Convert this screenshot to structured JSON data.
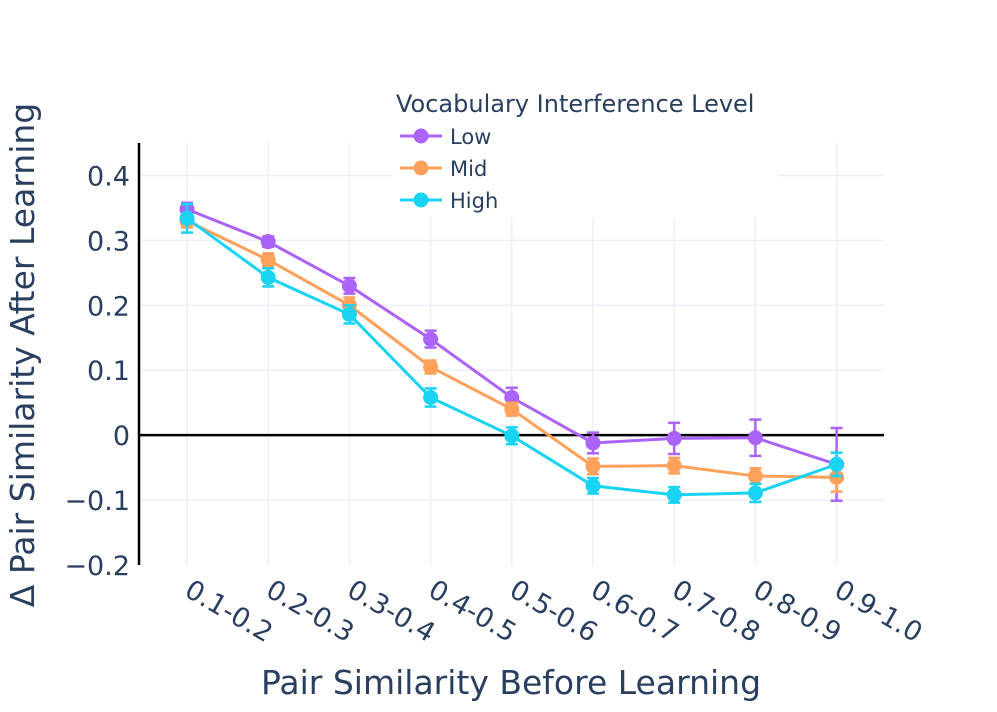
{
  "chart_data": {
    "type": "line",
    "title": "",
    "xlabel": "Pair Similarity Before Learning",
    "ylabel": "Δ Pair Similarity After Learning",
    "categories": [
      "0.1-0.2",
      "0.2-0.3",
      "0.3-0.4",
      "0.4-0.5",
      "0.5-0.6",
      "0.6-0.7",
      "0.7-0.8",
      "0.8-0.9",
      "0.9-1.0"
    ],
    "ylim": [
      -0.2,
      0.45
    ],
    "yticks": [
      -0.2,
      -0.1,
      0,
      0.1,
      0.2,
      0.3,
      0.4
    ],
    "ytick_labels": [
      "−0.2",
      "−0.1",
      "0",
      "0.1",
      "0.2",
      "0.3",
      "0.4"
    ],
    "grid": true,
    "legend": {
      "title": "Vocabulary Interference Level",
      "position": "top"
    },
    "series": [
      {
        "name": "Low",
        "color": "#ab63fa",
        "values": [
          0.348,
          0.298,
          0.23,
          0.148,
          0.058,
          -0.012,
          -0.005,
          -0.004,
          -0.045
        ],
        "errors": [
          0.01,
          0.008,
          0.012,
          0.013,
          0.015,
          0.016,
          0.024,
          0.028,
          0.056
        ]
      },
      {
        "name": "Mid",
        "color": "#ffa15a",
        "values": [
          0.33,
          0.27,
          0.2,
          0.105,
          0.04,
          -0.048,
          -0.047,
          -0.063,
          -0.065
        ],
        "errors": [
          0.01,
          0.01,
          0.012,
          0.01,
          0.01,
          0.012,
          0.012,
          0.012,
          0.022
        ]
      },
      {
        "name": "High",
        "color": "#19d3f3",
        "values": [
          0.334,
          0.243,
          0.186,
          0.058,
          -0.001,
          -0.078,
          -0.092,
          -0.089,
          -0.045
        ],
        "errors": [
          0.022,
          0.014,
          0.014,
          0.014,
          0.013,
          0.012,
          0.012,
          0.014,
          0.018
        ]
      }
    ]
  }
}
